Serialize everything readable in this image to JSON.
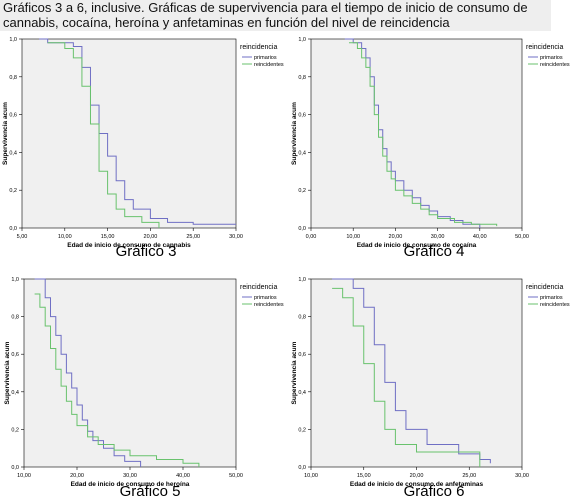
{
  "caption": "Gráficos 3 a 6, inclusive. Gráficas de supervivencia para el tiempo de inicio de consumo de cannabis, cocaína, heroína y anfetaminas en función del nivel de reincidencia",
  "colors": {
    "primarios": "#6f6fc4",
    "reincidentes": "#69c26d",
    "plot_background": "#f0f0f0"
  },
  "chart_data": [
    {
      "type": "line",
      "title": "Gráfico 3",
      "xlabel": "Edad de inicio de consumo de cannabis",
      "ylabel": "Supervivencia acum",
      "xlim": [
        5,
        30
      ],
      "ylim": [
        0,
        1
      ],
      "xticks": [
        5,
        10,
        15,
        20,
        25,
        30
      ],
      "xtick_labels": [
        "5,00",
        "10,00",
        "15,00",
        "20,00",
        "25,00",
        "30,00"
      ],
      "yticks": [
        0,
        0.2,
        0.4,
        0.6,
        0.8,
        1.0
      ],
      "ytick_labels": [
        "0,0",
        "0,2",
        "0,4",
        "0,6",
        "0,8",
        "1,0"
      ],
      "legend": {
        "title": "reincidencia",
        "position": "top-right"
      },
      "grid": false,
      "series": [
        {
          "name": "primarios",
          "step": true,
          "x": [
            7,
            8,
            11,
            12,
            13,
            14,
            15,
            16,
            17,
            18,
            20,
            22,
            25,
            30
          ],
          "y": [
            1.0,
            0.98,
            0.96,
            0.85,
            0.65,
            0.5,
            0.38,
            0.25,
            0.15,
            0.1,
            0.05,
            0.03,
            0.02,
            0.02
          ]
        },
        {
          "name": "reincidentes",
          "step": true,
          "x": [
            8,
            10,
            11,
            12,
            13,
            14,
            15,
            16,
            17,
            19,
            21
          ],
          "y": [
            0.98,
            0.95,
            0.9,
            0.75,
            0.55,
            0.3,
            0.18,
            0.1,
            0.06,
            0.03,
            0.0
          ]
        }
      ]
    },
    {
      "type": "line",
      "title": "Gráfico 4",
      "xlabel": "Edad de inicio de consumo de cocaína",
      "ylabel": "Supervivencia acum",
      "xlim": [
        0,
        50
      ],
      "ylim": [
        0,
        1
      ],
      "xticks": [
        0,
        10,
        20,
        30,
        40,
        50
      ],
      "xtick_labels": [
        "0,00",
        "10,00",
        "20,00",
        "30,00",
        "40,00",
        "50,00"
      ],
      "yticks": [
        0,
        0.2,
        0.4,
        0.6,
        0.8,
        1.0
      ],
      "ytick_labels": [
        "0,0",
        "0,2",
        "0,4",
        "0,6",
        "0,8",
        "1,0"
      ],
      "legend": {
        "title": "reincidencia",
        "position": "top-right"
      },
      "grid": false,
      "series": [
        {
          "name": "primarios",
          "step": true,
          "x": [
            8,
            10,
            12,
            13,
            14,
            15,
            16,
            17,
            18,
            19,
            20,
            22,
            24,
            26,
            28,
            30,
            33,
            36,
            40
          ],
          "y": [
            1.0,
            0.98,
            0.95,
            0.9,
            0.8,
            0.65,
            0.52,
            0.42,
            0.35,
            0.3,
            0.25,
            0.2,
            0.16,
            0.12,
            0.09,
            0.06,
            0.04,
            0.02,
            0.0
          ]
        },
        {
          "name": "reincidentes",
          "step": true,
          "x": [
            9,
            11,
            12,
            13,
            14,
            15,
            16,
            17,
            18,
            19,
            20,
            22,
            24,
            26,
            28,
            30,
            34,
            38,
            44
          ],
          "y": [
            0.98,
            0.95,
            0.9,
            0.85,
            0.75,
            0.6,
            0.48,
            0.38,
            0.3,
            0.26,
            0.2,
            0.17,
            0.13,
            0.1,
            0.07,
            0.05,
            0.03,
            0.02,
            0.01
          ]
        }
      ]
    },
    {
      "type": "line",
      "title": "Gráfico 5",
      "xlabel": "Edad de inicio de consumo de heroína",
      "ylabel": "Supervivencia acum",
      "xlim": [
        10,
        50
      ],
      "ylim": [
        0,
        1
      ],
      "xticks": [
        10,
        20,
        30,
        40,
        50
      ],
      "xtick_labels": [
        "10,00",
        "20,00",
        "30,00",
        "40,00",
        "50,00"
      ],
      "yticks": [
        0,
        0.2,
        0.4,
        0.6,
        0.8,
        1.0
      ],
      "ytick_labels": [
        "0,0",
        "0,2",
        "0,4",
        "0,6",
        "0,8",
        "1,0"
      ],
      "legend": {
        "title": "reincidencia",
        "position": "top-right"
      },
      "grid": false,
      "series": [
        {
          "name": "primarios",
          "step": true,
          "x": [
            12,
            14,
            15,
            16,
            17,
            18,
            19,
            20,
            21,
            22,
            23,
            25,
            27,
            29,
            32
          ],
          "y": [
            1.0,
            0.9,
            0.8,
            0.7,
            0.6,
            0.5,
            0.42,
            0.33,
            0.25,
            0.19,
            0.14,
            0.1,
            0.06,
            0.03,
            0.0
          ]
        },
        {
          "name": "reincidentes",
          "step": true,
          "x": [
            12,
            13,
            14,
            15,
            16,
            17,
            18,
            19,
            20,
            22,
            24,
            27,
            30,
            35,
            40,
            43
          ],
          "y": [
            0.92,
            0.85,
            0.75,
            0.63,
            0.52,
            0.43,
            0.35,
            0.28,
            0.22,
            0.16,
            0.12,
            0.09,
            0.06,
            0.04,
            0.02,
            0.0
          ]
        }
      ]
    },
    {
      "type": "line",
      "title": "Gráfico 6",
      "xlabel": "Edad de inicio de consumo de anfetaminas",
      "ylabel": "Supervivencia acum",
      "xlim": [
        10,
        30
      ],
      "ylim": [
        0,
        1
      ],
      "xticks": [
        10,
        15,
        20,
        25,
        30
      ],
      "xtick_labels": [
        "10,00",
        "15,00",
        "20,00",
        "25,00",
        "30,00"
      ],
      "yticks": [
        0,
        0.2,
        0.4,
        0.6,
        0.8,
        1.0
      ],
      "ytick_labels": [
        "0,0",
        "0,2",
        "0,4",
        "0,6",
        "0,8",
        "1,0"
      ],
      "legend": {
        "title": "reincidencia",
        "position": "top-right"
      },
      "grid": false,
      "series": [
        {
          "name": "primarios",
          "step": true,
          "x": [
            12,
            14,
            15,
            16,
            17,
            18,
            19,
            21,
            24,
            26,
            27
          ],
          "y": [
            1.0,
            0.95,
            0.85,
            0.65,
            0.45,
            0.3,
            0.2,
            0.12,
            0.07,
            0.04,
            0.02
          ]
        },
        {
          "name": "reincidentes",
          "step": true,
          "x": [
            12,
            13,
            14,
            15,
            16,
            17,
            18,
            20,
            22,
            26
          ],
          "y": [
            0.95,
            0.9,
            0.75,
            0.55,
            0.35,
            0.2,
            0.12,
            0.08,
            0.08,
            0.0
          ]
        }
      ]
    }
  ]
}
